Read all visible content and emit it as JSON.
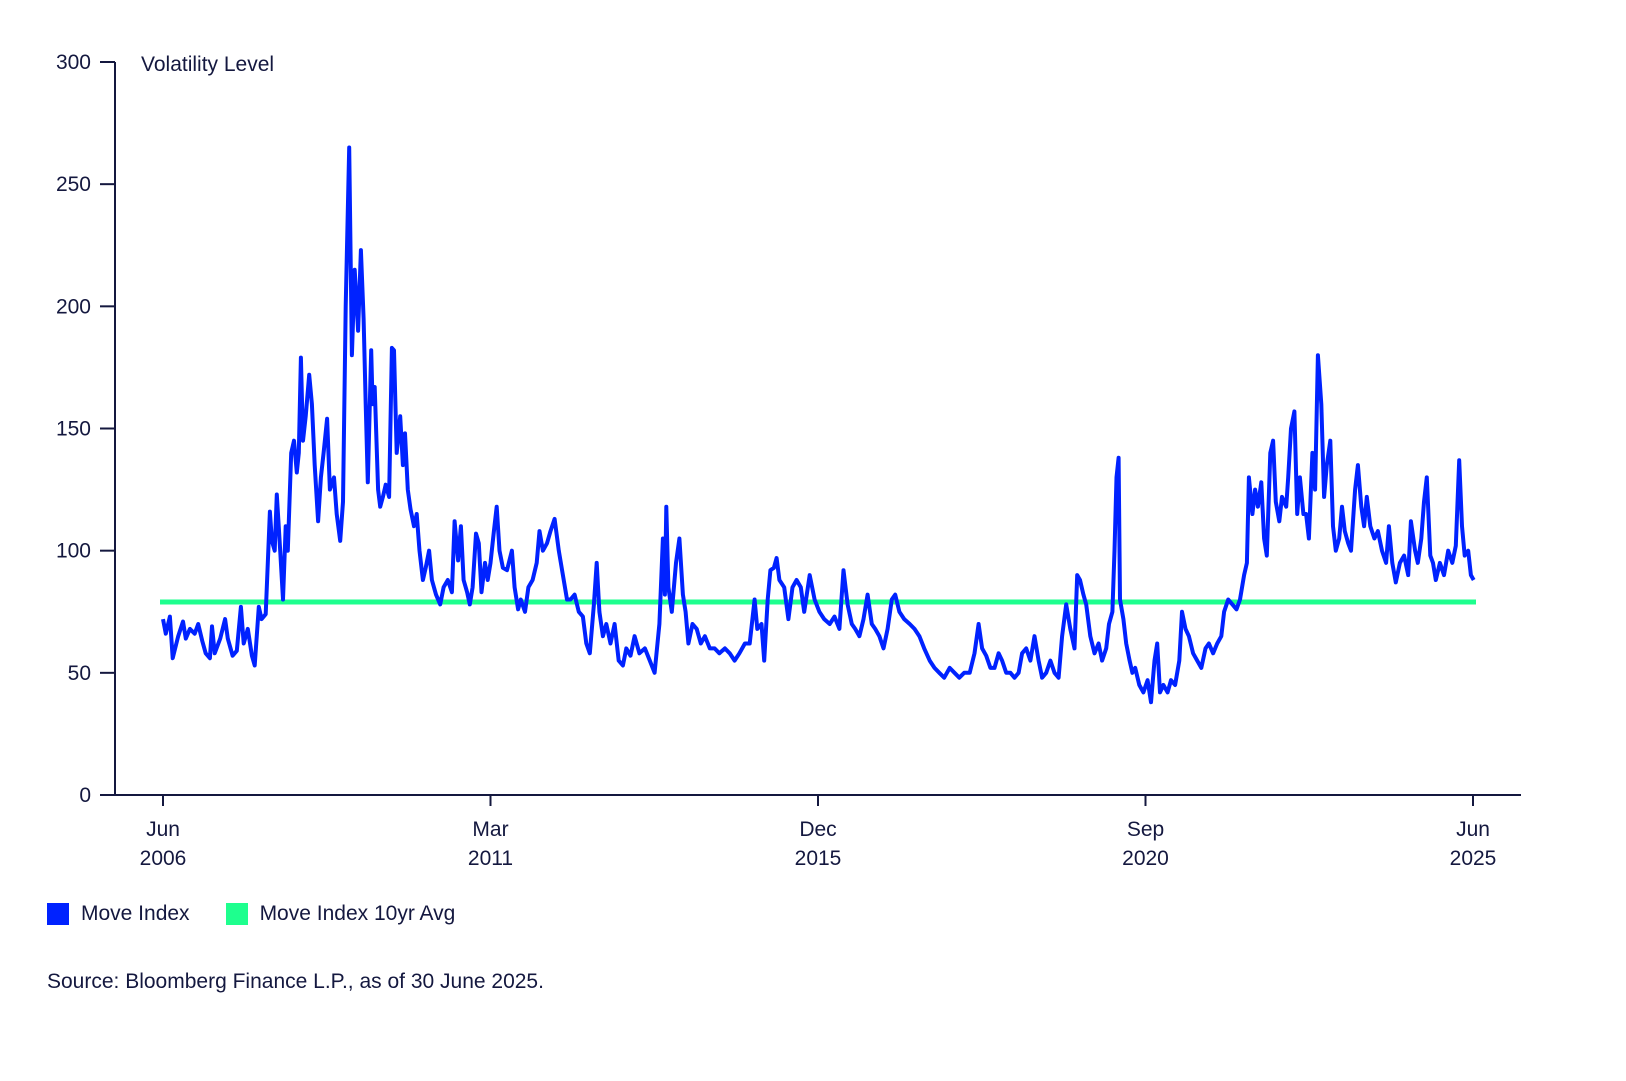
{
  "chart_data": {
    "type": "line",
    "title": "",
    "ylabel": "Volatility Level",
    "xlabel": "",
    "ylim": [
      0,
      300
    ],
    "xlim": [
      2006.42,
      2025.42
    ],
    "yticks": [
      0,
      50,
      100,
      150,
      200,
      250,
      300
    ],
    "xticks": [
      {
        "value": 2006.42,
        "month": "Jun",
        "year": "2006"
      },
      {
        "value": 2011.17,
        "month": "Mar",
        "year": "2011"
      },
      {
        "value": 2015.92,
        "month": "Dec",
        "year": "2015"
      },
      {
        "value": 2020.67,
        "month": "Sep",
        "year": "2020"
      },
      {
        "value": 2025.42,
        "month": "Jun",
        "year": "2025"
      }
    ],
    "grid": false,
    "legend_position": "bottom-left",
    "series": [
      {
        "name": "Move Index",
        "color": "#0022ff",
        "x": [
          2006.42,
          2006.46,
          2006.52,
          2006.56,
          2006.64,
          2006.71,
          2006.75,
          2006.81,
          2006.88,
          2006.93,
          2006.99,
          2007.04,
          2007.1,
          2007.13,
          2007.17,
          2007.25,
          2007.32,
          2007.36,
          2007.43,
          2007.49,
          2007.55,
          2007.59,
          2007.65,
          2007.71,
          2007.75,
          2007.81,
          2007.85,
          2007.91,
          2007.94,
          2007.97,
          2008.0,
          2008.04,
          2008.07,
          2008.12,
          2008.16,
          2008.2,
          2008.23,
          2008.28,
          2008.32,
          2008.36,
          2008.39,
          2008.42,
          2008.45,
          2008.49,
          2008.54,
          2008.58,
          2008.62,
          2008.67,
          2008.71,
          2008.75,
          2008.8,
          2008.84,
          2008.9,
          2008.94,
          2008.99,
          2009.03,
          2009.07,
          2009.12,
          2009.16,
          2009.2,
          2009.25,
          2009.29,
          2009.33,
          2009.36,
          2009.39,
          2009.44,
          2009.46,
          2009.49,
          2009.54,
          2009.57,
          2009.61,
          2009.65,
          2009.7,
          2009.74,
          2009.77,
          2009.81,
          2009.86,
          2009.9,
          2009.93,
          2009.97,
          2010.01,
          2010.06,
          2010.1,
          2010.14,
          2010.19,
          2010.23,
          2010.28,
          2010.32,
          2010.38,
          2010.44,
          2010.49,
          2010.55,
          2010.61,
          2010.65,
          2010.7,
          2010.74,
          2010.78,
          2010.83,
          2010.87,
          2010.91,
          2010.96,
          2011.0,
          2011.04,
          2011.09,
          2011.13,
          2011.17,
          2011.22,
          2011.26,
          2011.3,
          2011.35,
          2011.41,
          2011.48,
          2011.52,
          2011.57,
          2011.61,
          2011.67,
          2011.72,
          2011.78,
          2011.84,
          2011.88,
          2011.93,
          2011.99,
          2012.04,
          2012.1,
          2012.16,
          2012.22,
          2012.28,
          2012.33,
          2012.39,
          2012.45,
          2012.51,
          2012.56,
          2012.61,
          2012.67,
          2012.71,
          2012.75,
          2012.8,
          2012.85,
          2012.91,
          2012.97,
          2013.03,
          2013.09,
          2013.14,
          2013.2,
          2013.26,
          2013.33,
          2013.41,
          2013.48,
          2013.55,
          2013.62,
          2013.67,
          2013.7,
          2013.72,
          2013.75,
          2013.8,
          2013.86,
          2013.91,
          2013.96,
          2014.0,
          2014.04,
          2014.1,
          2014.16,
          2014.22,
          2014.28,
          2014.35,
          2014.42,
          2014.49,
          2014.57,
          2014.64,
          2014.71,
          2014.78,
          2014.86,
          2014.93,
          2015.0,
          2015.04,
          2015.1,
          2015.14,
          2015.19,
          2015.23,
          2015.28,
          2015.32,
          2015.36,
          2015.43,
          2015.49,
          2015.55,
          2015.61,
          2015.67,
          2015.72,
          2015.8,
          2015.87,
          2015.94,
          2016.01,
          2016.09,
          2016.16,
          2016.23,
          2016.29,
          2016.35,
          2016.41,
          2016.46,
          2016.52,
          2016.58,
          2016.64,
          2016.7,
          2016.75,
          2016.81,
          2016.87,
          2016.93,
          2016.99,
          2017.04,
          2017.1,
          2017.17,
          2017.25,
          2017.32,
          2017.39,
          2017.46,
          2017.54,
          2017.61,
          2017.68,
          2017.75,
          2017.83,
          2017.9,
          2017.97,
          2018.04,
          2018.12,
          2018.19,
          2018.25,
          2018.3,
          2018.36,
          2018.42,
          2018.48,
          2018.54,
          2018.59,
          2018.65,
          2018.71,
          2018.77,
          2018.83,
          2018.88,
          2018.94,
          2019.0,
          2019.06,
          2019.12,
          2019.17,
          2019.23,
          2019.29,
          2019.35,
          2019.41,
          2019.46,
          2019.52,
          2019.58,
          2019.64,
          2019.68,
          2019.72,
          2019.77,
          2019.81,
          2019.87,
          2019.93,
          2019.99,
          2020.04,
          2020.1,
          2020.14,
          2020.19,
          2020.22,
          2020.25,
          2020.28,
          2020.3,
          2020.35,
          2020.39,
          2020.44,
          2020.48,
          2020.52,
          2020.58,
          2020.64,
          2020.7,
          2020.75,
          2020.8,
          2020.84,
          2020.88,
          2020.93,
          2020.99,
          2021.04,
          2021.1,
          2021.16,
          2021.2,
          2021.25,
          2021.3,
          2021.36,
          2021.42,
          2021.48,
          2021.54,
          2021.59,
          2021.65,
          2021.71,
          2021.77,
          2021.81,
          2021.87,
          2021.93,
          2021.99,
          2022.04,
          2022.1,
          2022.14,
          2022.17,
          2022.22,
          2022.26,
          2022.3,
          2022.35,
          2022.39,
          2022.43,
          2022.48,
          2022.52,
          2022.56,
          2022.61,
          2022.65,
          2022.71,
          2022.74,
          2022.78,
          2022.83,
          2022.87,
          2022.91,
          2022.96,
          2023.0,
          2023.04,
          2023.09,
          2023.13,
          2023.17,
          2023.22,
          2023.26,
          2023.3,
          2023.35,
          2023.39,
          2023.43,
          2023.48,
          2023.52,
          2023.56,
          2023.61,
          2023.65,
          2023.71,
          2023.75,
          2023.8,
          2023.84,
          2023.88,
          2023.93,
          2023.99,
          2024.04,
          2024.1,
          2024.16,
          2024.2,
          2024.25,
          2024.3,
          2024.36,
          2024.42,
          2024.48,
          2024.52,
          2024.58,
          2024.62,
          2024.67,
          2024.71,
          2024.75,
          2024.8,
          2024.84,
          2024.88,
          2024.94,
          2025.0,
          2025.06,
          2025.12,
          2025.17,
          2025.22,
          2025.26,
          2025.3,
          2025.35,
          2025.39,
          2025.43
        ],
        "y": [
          72,
          66,
          73,
          56,
          65,
          71,
          64,
          68,
          66,
          70,
          63,
          58,
          56,
          69,
          58,
          64,
          72,
          64,
          57,
          59,
          77,
          62,
          68,
          57,
          53,
          77,
          72,
          74,
          95,
          116,
          104,
          100,
          123,
          100,
          80,
          110,
          100,
          140,
          145,
          132,
          140,
          179,
          145,
          155,
          172,
          160,
          135,
          112,
          130,
          140,
          154,
          125,
          130,
          115,
          104,
          120,
          200,
          265,
          180,
          215,
          190,
          223,
          195,
          160,
          128,
          182,
          160,
          167,
          125,
          118,
          122,
          127,
          122,
          183,
          182,
          140,
          155,
          135,
          148,
          125,
          117,
          110,
          115,
          100,
          88,
          93,
          100,
          88,
          82,
          78,
          85,
          88,
          83,
          112,
          96,
          110,
          88,
          83,
          78,
          85,
          107,
          103,
          83,
          95,
          88,
          95,
          108,
          118,
          100,
          93,
          92,
          100,
          85,
          76,
          80,
          75,
          85,
          88,
          95,
          108,
          100,
          103,
          108,
          113,
          100,
          90,
          80,
          80,
          82,
          75,
          73,
          62,
          58,
          78,
          95,
          75,
          65,
          70,
          62,
          70,
          55,
          53,
          60,
          57,
          65,
          58,
          60,
          55,
          50,
          70,
          105,
          82,
          118,
          85,
          75,
          95,
          105,
          82,
          75,
          62,
          70,
          68,
          62,
          65,
          60,
          60,
          58,
          60,
          58,
          55,
          58,
          62,
          62,
          80,
          68,
          70,
          55,
          80,
          92,
          93,
          97,
          88,
          85,
          72,
          85,
          88,
          85,
          75,
          90,
          80,
          75,
          72,
          70,
          73,
          68,
          92,
          78,
          70,
          68,
          65,
          72,
          82,
          70,
          68,
          65,
          60,
          68,
          80,
          82,
          75,
          72,
          70,
          68,
          65,
          60,
          55,
          52,
          50,
          48,
          52,
          50,
          48,
          50,
          50,
          58,
          70,
          60,
          57,
          52,
          52,
          58,
          55,
          50,
          50,
          48,
          50,
          58,
          60,
          55,
          65,
          55,
          48,
          50,
          55,
          50,
          48,
          65,
          78,
          68,
          60,
          90,
          88,
          82,
          78,
          65,
          58,
          62,
          55,
          60,
          70,
          75,
          100,
          130,
          138,
          80,
          72,
          62,
          55,
          50,
          52,
          45,
          42,
          47,
          38,
          55,
          62,
          42,
          45,
          42,
          47,
          45,
          55,
          75,
          68,
          65,
          58,
          55,
          52,
          60,
          62,
          58,
          62,
          65,
          75,
          80,
          78,
          76,
          80,
          90,
          95,
          130,
          115,
          125,
          118,
          128,
          105,
          98,
          140,
          145,
          120,
          112,
          122,
          118,
          130,
          150,
          157,
          115,
          130,
          115,
          115,
          105,
          140,
          125,
          180,
          160,
          122,
          135,
          145,
          110,
          100,
          105,
          118,
          108,
          103,
          100,
          125,
          135,
          118,
          110,
          122,
          110,
          105,
          108,
          100,
          95,
          110,
          95,
          87,
          95,
          98,
          90,
          112,
          100,
          95,
          105,
          120,
          130,
          98,
          95,
          88,
          95,
          90,
          100,
          95,
          102,
          137,
          110,
          98,
          100,
          90,
          88
        ]
      },
      {
        "name": "Move Index 10yr Avg",
        "color": "#1eff8e",
        "x": [
          2006.42,
          2025.42
        ],
        "y": [
          79,
          79
        ]
      }
    ]
  },
  "legend": [
    "Move Index",
    "Move Index 10yr Avg"
  ],
  "source": "Source: Bloomberg Finance L.P., as of 30 June 2025."
}
